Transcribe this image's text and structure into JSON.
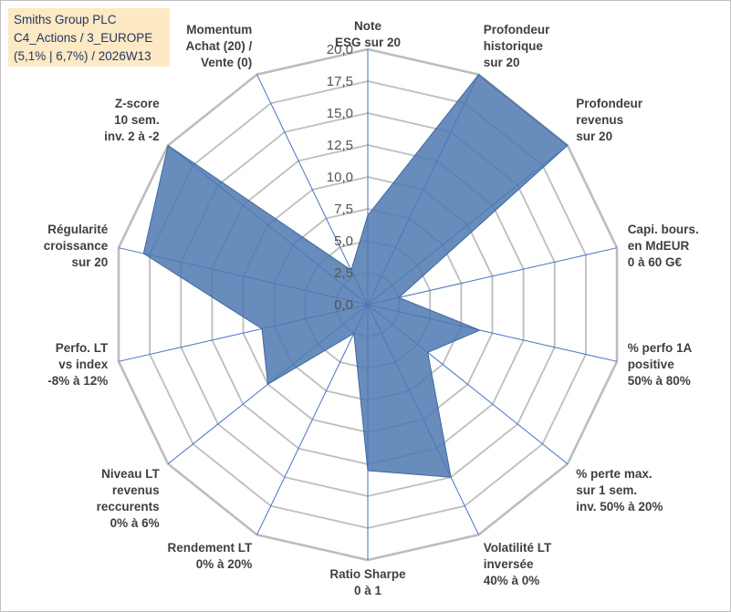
{
  "title_box": {
    "line1": "Smiths Group PLC",
    "line2": "C4_Actions / 3_EUROPE",
    "line3": "(5,1% | 6,7%) / 2026W13"
  },
  "colors": {
    "fill": "#4e79b0",
    "stroke": "#3f68a0",
    "grid": "#bdbdbd",
    "spoke": "#4472c4",
    "title_bg": "#fde9c4",
    "title_text": "#1f3864"
  },
  "chart_data": {
    "type": "radar",
    "title": "Smiths Group PLC",
    "rlim": [
      0,
      20
    ],
    "grid": true,
    "ticks": [
      "0,0",
      "2,5",
      "5,0",
      "7,5",
      "10,0",
      "12,5",
      "15,0",
      "17,5",
      "20,0"
    ],
    "axes": [
      {
        "label": [
          "Note",
          "ESG sur 20"
        ],
        "value": 7
      },
      {
        "label": [
          "Profondeur",
          "historique",
          "sur 20"
        ],
        "value": 20
      },
      {
        "label": [
          "Profondeur",
          "revenus",
          "sur 20"
        ],
        "value": 20
      },
      {
        "label": [
          "Capi. bours.",
          "en MdEUR",
          "0 à 60 G€"
        ],
        "value": 2.5
      },
      {
        "label": [
          "% perfo 1A",
          "positive",
          "50% à 80%"
        ],
        "value": 9
      },
      {
        "label": [
          "% perte max.",
          "sur 1 sem.",
          "inv. 50% à 20%"
        ],
        "value": 6
      },
      {
        "label": [
          "Volatilité LT",
          "inversée",
          "40% à 0%"
        ],
        "value": 15
      },
      {
        "label": [
          "Ratio Sharpe",
          "0 à 1"
        ],
        "value": 13
      },
      {
        "label": [
          "Rendement LT",
          "0% à 20%"
        ],
        "value": 2.5
      },
      {
        "label": [
          "Niveau LT",
          "revenus",
          "reccurents",
          "0% à 6%"
        ],
        "value": 10
      },
      {
        "label": [
          "Perfo. LT",
          "vs index",
          "-8% à 12%"
        ],
        "value": 8.5
      },
      {
        "label": [
          "Régularité",
          "croissance",
          "sur 20"
        ],
        "value": 18
      },
      {
        "label": [
          "Z-score",
          "10 sem.",
          "inv. 2 à -2"
        ],
        "value": 20
      },
      {
        "label": [
          "Momentum",
          "Achat (20) /",
          "Vente (0)"
        ],
        "value": 3
      }
    ]
  }
}
